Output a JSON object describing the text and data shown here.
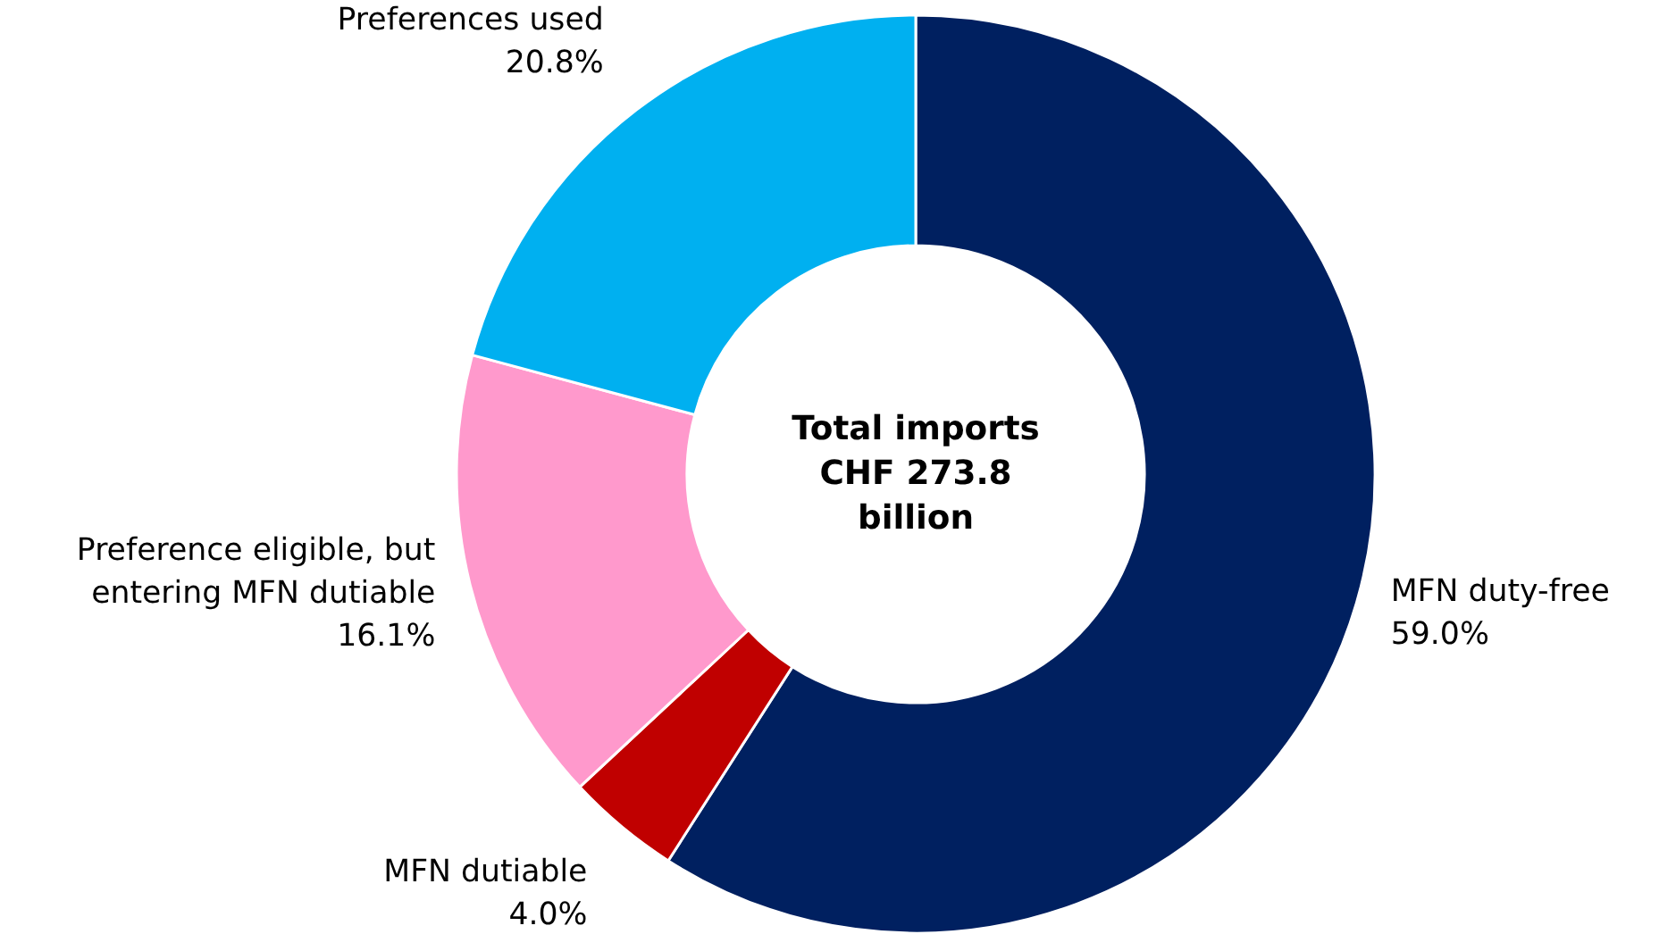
{
  "chart_data": {
    "type": "donut",
    "categories": [
      "MFN duty-free",
      "MFN dutiable",
      "Preference eligible, but entering MFN dutiable",
      "Preferences used"
    ],
    "values": [
      59.0,
      4.0,
      16.1,
      20.8
    ],
    "colors": [
      "#002060",
      "#c00000",
      "#ff99cc",
      "#00b0f0"
    ],
    "value_labels": [
      "59.0%",
      "4.0%",
      "16.1%",
      "20.8%"
    ],
    "annotations": [
      "Total imports\nCHF 273.8\nbillion"
    ]
  }
}
